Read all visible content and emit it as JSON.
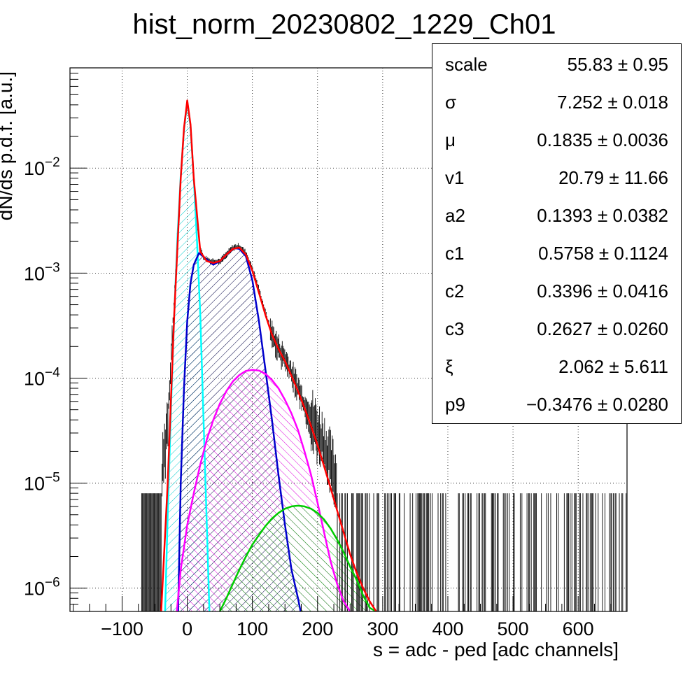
{
  "chart_data": {
    "type": "histogram",
    "title": "hist_norm_20230802_1229_Ch01",
    "xlabel": "s = adc - ped [adc channels]",
    "ylabel": "dN/ds p.d.f. [a.u.]",
    "xlim": [
      -180,
      675
    ],
    "ylim": [
      6e-07,
      0.09
    ],
    "yscale": "log",
    "grid": true,
    "x_ticks": [
      -100,
      0,
      100,
      200,
      300,
      400,
      500,
      600
    ],
    "x_tick_labels": [
      "−100",
      "0",
      "100",
      "200",
      "300",
      "400",
      "500",
      "600"
    ],
    "y_ticks": [
      {
        "value": 0.01,
        "mantissa": "10",
        "exponent": "−2"
      },
      {
        "value": 0.001,
        "mantissa": "10",
        "exponent": "−3"
      },
      {
        "value": 0.0001,
        "mantissa": "10",
        "exponent": "−4"
      },
      {
        "value": 1e-05,
        "mantissa": "10",
        "exponent": "−5"
      },
      {
        "value": 1e-06,
        "mantissa": "10",
        "exponent": "−6"
      }
    ],
    "histogram": {
      "x": [
        -70,
        -60,
        -50,
        -40,
        -35,
        -30,
        -25,
        -20,
        -15,
        -10,
        -5,
        0,
        5,
        10,
        15,
        20,
        25,
        30,
        35,
        40,
        50,
        60,
        70,
        80,
        90,
        100,
        110,
        120,
        130,
        140,
        150,
        160,
        170,
        180,
        190,
        200,
        210,
        220,
        230,
        240,
        250,
        260,
        270,
        280,
        300,
        340,
        400,
        450,
        520,
        675
      ],
      "y": [
        8e-06,
        8e-06,
        8e-06,
        1e-05,
        2e-05,
        4e-05,
        0.00015,
        0.0006,
        0.0025,
        0.009,
        0.022,
        0.042,
        0.025,
        0.008,
        0.003,
        0.0017,
        0.0014,
        0.00135,
        0.0013,
        0.0013,
        0.0013,
        0.0015,
        0.00175,
        0.0018,
        0.00155,
        0.0011,
        0.0007,
        0.00042,
        0.00026,
        0.00019,
        0.00015,
        0.00011,
        8e-05,
        5.5e-05,
        4e-05,
        3e-05,
        2.3e-05,
        1.5e-05,
        1e-05,
        8e-06,
        8e-06,
        8e-06,
        8e-06,
        8e-06,
        8e-06,
        8e-06,
        8e-06,
        8e-06,
        8e-06,
        8e-06
      ]
    },
    "series": [
      {
        "color": "#ff0000",
        "x": [
          -40,
          -30,
          -20,
          -10,
          -5,
          0,
          5,
          10,
          20,
          30,
          40,
          50,
          60,
          70,
          80,
          90,
          100,
          110,
          120,
          130,
          140,
          150,
          160,
          170,
          180,
          190,
          200,
          210,
          220,
          230,
          240,
          250,
          260,
          270,
          280,
          290
        ],
        "y": [
          6e-07,
          1e-05,
          0.0004,
          0.008,
          0.024,
          0.044,
          0.026,
          0.008,
          0.0016,
          0.0013,
          0.00125,
          0.0013,
          0.0015,
          0.0017,
          0.00175,
          0.0015,
          0.00105,
          0.00065,
          0.0004,
          0.00026,
          0.00019,
          0.000145,
          0.000105,
          7.5e-05,
          5.2e-05,
          3.5e-05,
          2.3e-05,
          1.45e-05,
          9e-06,
          5.5e-06,
          3.4e-06,
          2.1e-06,
          1.4e-06,
          1e-06,
          7.5e-07,
          6e-07
        ]
      },
      {
        "color": "#00ffff",
        "fill": "#00ffff",
        "x": [
          -34,
          -30,
          -25,
          -20,
          -15,
          -10,
          -5,
          0,
          5,
          10,
          15,
          20,
          25,
          30,
          34
        ],
        "y": [
          6e-07,
          5e-06,
          5e-05,
          0.0004,
          0.0022,
          0.0085,
          0.023,
          0.043,
          0.025,
          0.008,
          0.002,
          0.0004,
          4e-05,
          4e-06,
          6e-07
        ]
      },
      {
        "color": "#0000cc",
        "fill": "#000066",
        "x": [
          -14,
          -10,
          -5,
          0,
          5,
          10,
          18,
          30,
          40,
          50,
          60,
          70,
          75,
          80,
          90,
          100,
          110,
          120,
          130,
          140,
          150,
          160,
          170,
          174
        ],
        "y": [
          6e-07,
          1e-05,
          8e-05,
          0.00035,
          0.0008,
          0.0012,
          0.00155,
          0.00135,
          0.0012,
          0.0013,
          0.0015,
          0.0017,
          0.00172,
          0.0017,
          0.00145,
          0.00085,
          0.00035,
          0.00012,
          4e-05,
          1.2e-05,
          4e-06,
          1.5e-06,
          8e-07,
          6e-07
        ]
      },
      {
        "color": "#ff00ff",
        "fill": "#ff00ff",
        "x": [
          -16,
          -10,
          0,
          10,
          20,
          30,
          40,
          50,
          60,
          70,
          80,
          90,
          100,
          110,
          120,
          130,
          140,
          150,
          160,
          170,
          180,
          190,
          200,
          210,
          220,
          230,
          240,
          250
        ],
        "y": [
          6e-07,
          1.5e-06,
          4e-06,
          8e-06,
          1.5e-05,
          2.6e-05,
          4e-05,
          5.7e-05,
          7.5e-05,
          9.3e-05,
          0.000107,
          0.000117,
          0.00012,
          0.000118,
          0.00011,
          9.6e-05,
          8e-05,
          6.2e-05,
          4.6e-05,
          3.2e-05,
          2e-05,
          1.2e-05,
          6.5e-06,
          3.4e-06,
          1.8e-06,
          1.1e-06,
          7.5e-07,
          6e-07
        ]
      },
      {
        "color": "#00cc00",
        "fill": "#00cc00",
        "x": [
          50,
          60,
          70,
          80,
          90,
          100,
          110,
          120,
          130,
          140,
          150,
          160,
          170,
          180,
          190,
          200,
          210,
          220,
          230,
          240,
          250,
          260,
          270,
          280,
          290
        ],
        "y": [
          6e-07,
          8e-07,
          1.1e-06,
          1.5e-06,
          2e-06,
          2.6e-06,
          3.2e-06,
          3.9e-06,
          4.6e-06,
          5.2e-06,
          5.7e-06,
          6e-06,
          6.1e-06,
          6e-06,
          5.7e-06,
          5.2e-06,
          4.5e-06,
          3.7e-06,
          2.9e-06,
          2.2e-06,
          1.6e-06,
          1.2e-06,
          8.5e-07,
          6.5e-07,
          6e-07
        ]
      }
    ]
  },
  "stats": [
    {
      "name": "scale",
      "value": "55.83 ± 0.95"
    },
    {
      "name": "σ",
      "value": "7.252 ± 0.018"
    },
    {
      "name": "μ",
      "value": "0.1835 ± 0.0036"
    },
    {
      "name": "v1",
      "value": "20.79 ± 11.66"
    },
    {
      "name": "a2",
      "value": "0.1393 ± 0.0382"
    },
    {
      "name": "c1",
      "value": "0.5758 ± 0.1124"
    },
    {
      "name": "c2",
      "value": "0.3396 ± 0.0416"
    },
    {
      "name": "c3",
      "value": "0.2627 ± 0.0260"
    },
    {
      "name": "ξ",
      "value": "2.062 ± 5.611"
    },
    {
      "name": "p9",
      "value": "−0.3476 ± 0.0280"
    }
  ]
}
